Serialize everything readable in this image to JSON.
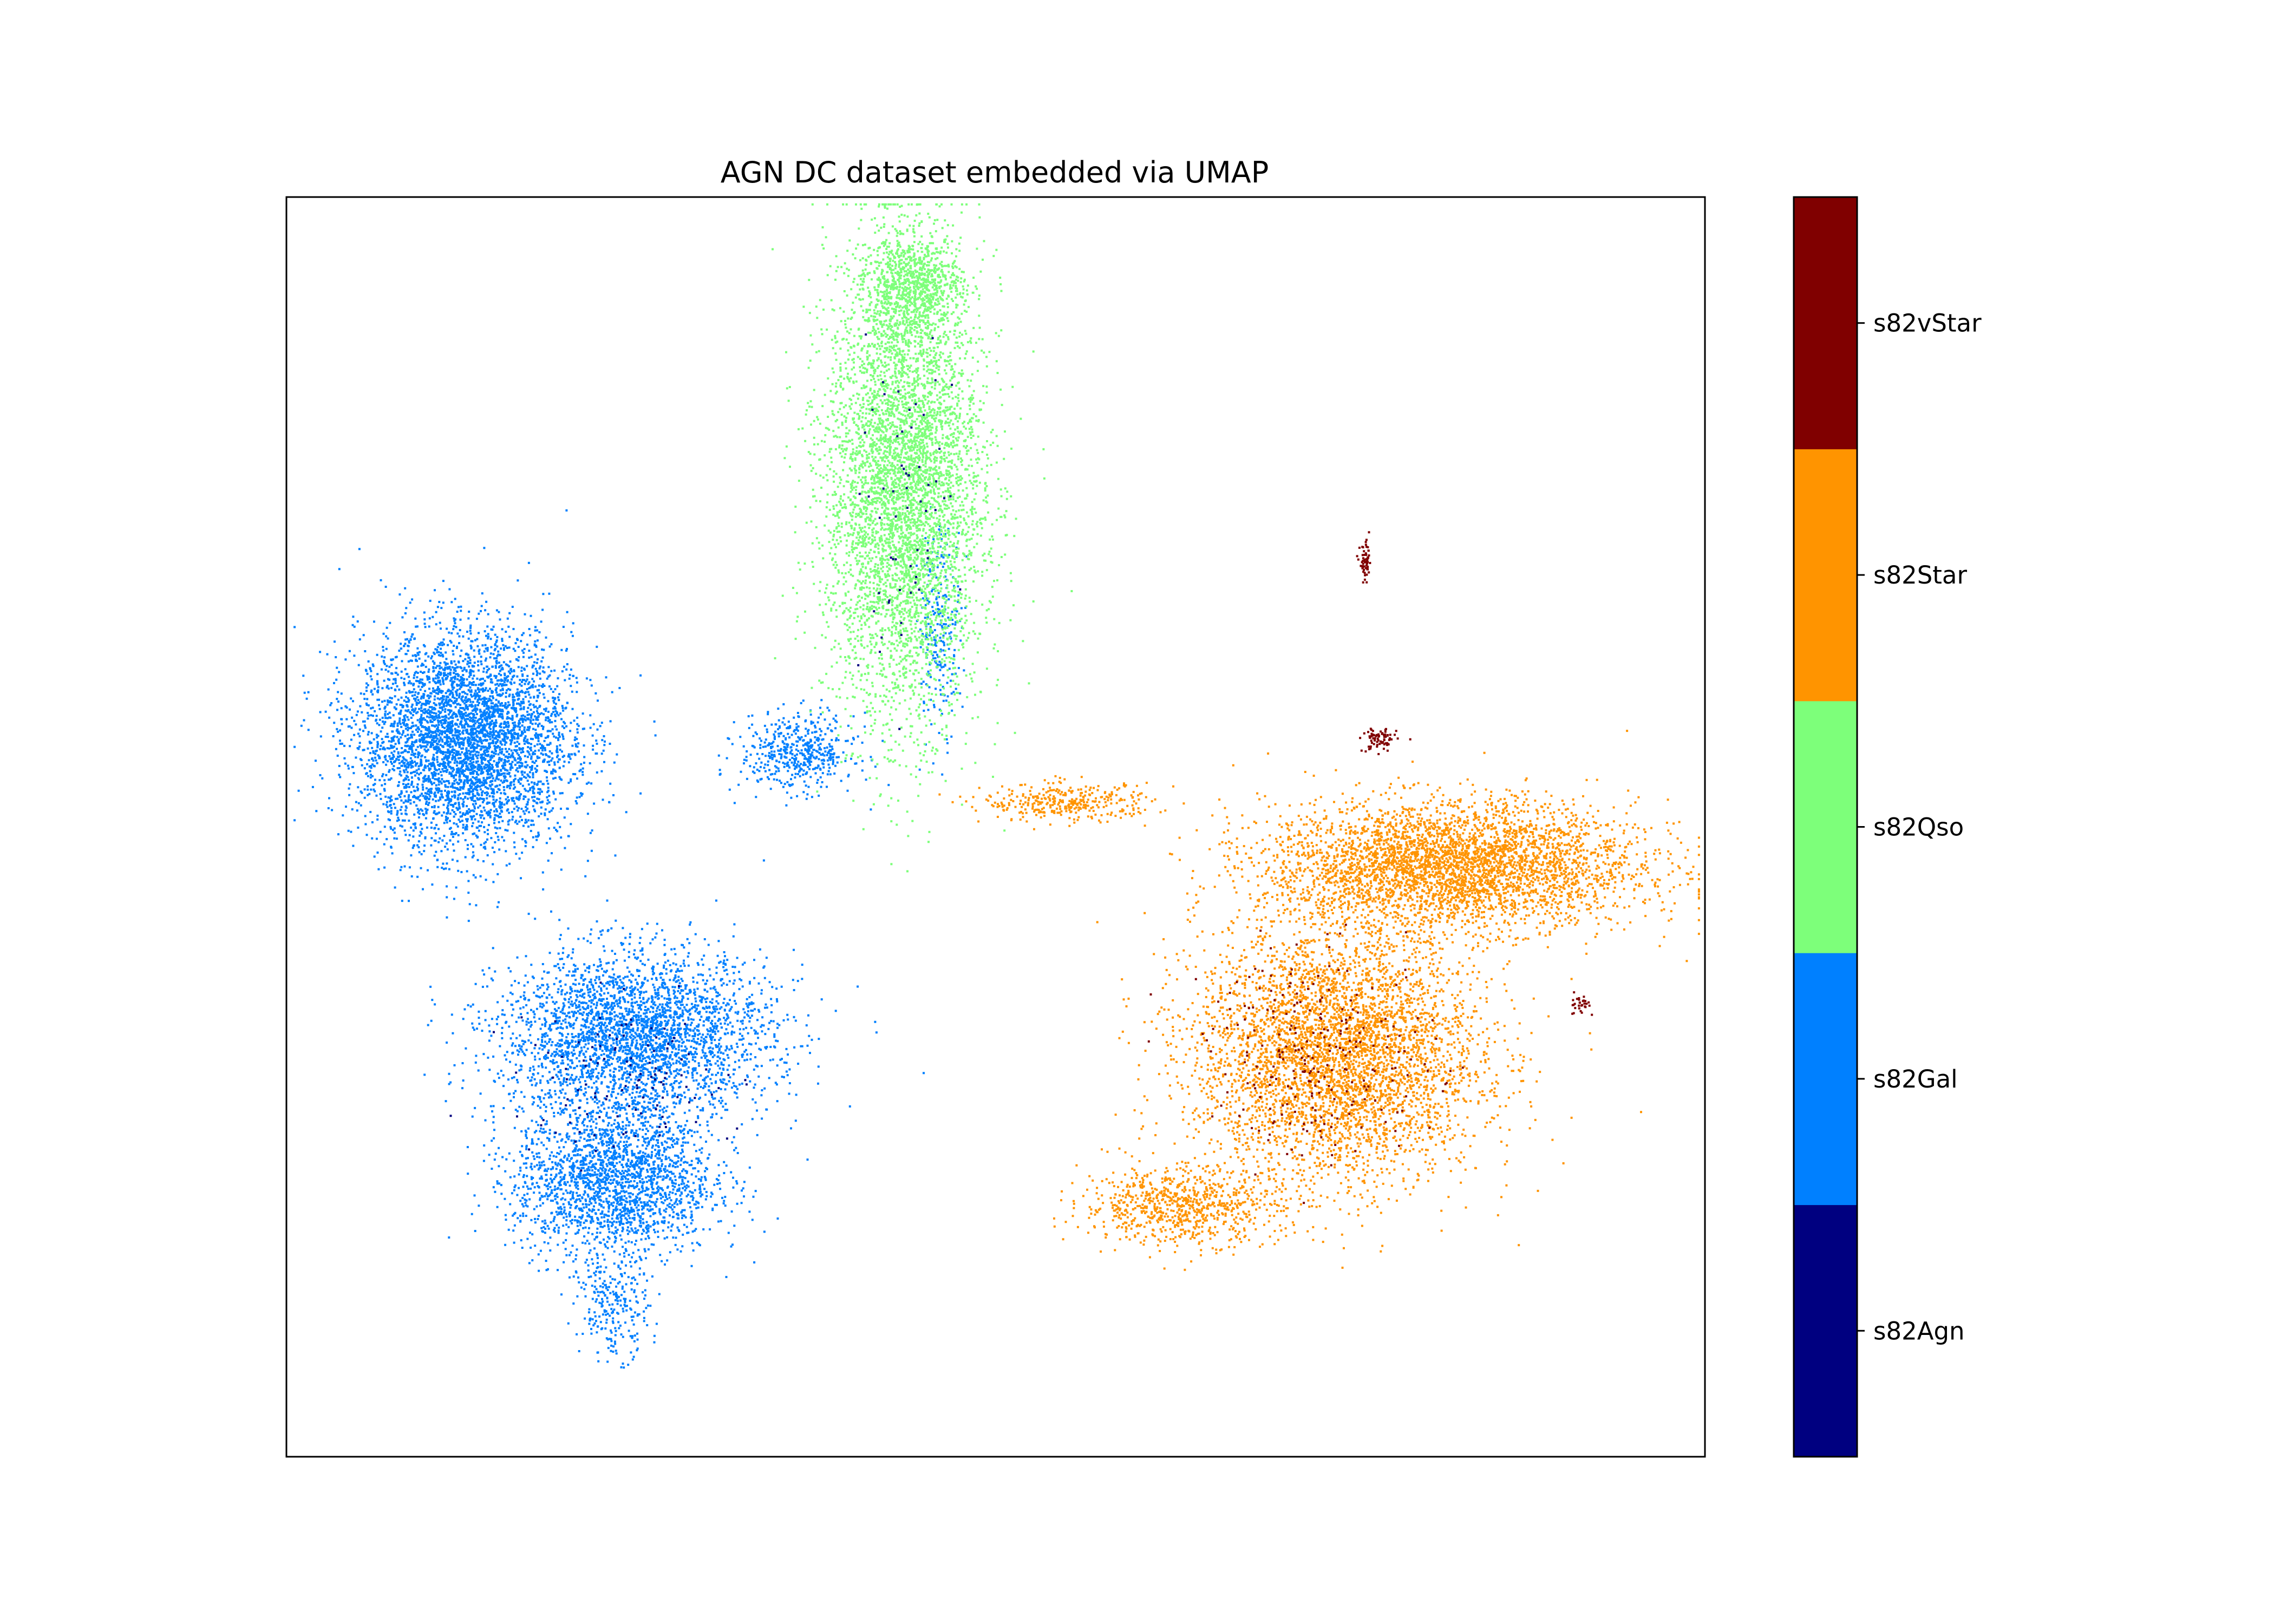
{
  "chart_data": {
    "type": "scatter",
    "title": "AGN DC dataset embedded via UMAP",
    "xlabel": "",
    "ylabel": "",
    "axis_ticks": "none",
    "grid": false,
    "legend": "colorbar-right",
    "colorbar": {
      "categories": [
        "s82Agn",
        "s82Gal",
        "s82Qso",
        "s82Star",
        "s82vStar"
      ],
      "colors": [
        "#000080",
        "#0080ff",
        "#7dff7a",
        "#ff9400",
        "#800000"
      ]
    },
    "series": [
      {
        "name": "s82Gal",
        "color": "#0080ff",
        "clusters": [
          {
            "cx": 0.125,
            "cy": 0.57,
            "rx": 0.075,
            "ry": 0.085,
            "n": 4500
          },
          {
            "cx": 0.245,
            "cy": 0.335,
            "rx": 0.095,
            "ry": 0.065,
            "n": 3200
          },
          {
            "cx": 0.23,
            "cy": 0.22,
            "rx": 0.07,
            "ry": 0.06,
            "n": 2200
          },
          {
            "cx": 0.36,
            "cy": 0.56,
            "rx": 0.04,
            "ry": 0.03,
            "n": 500
          },
          {
            "cx": 0.23,
            "cy": 0.12,
            "rx": 0.025,
            "ry": 0.04,
            "n": 250
          },
          {
            "cx": 0.46,
            "cy": 0.66,
            "rx": 0.015,
            "ry": 0.08,
            "n": 250
          }
        ]
      },
      {
        "name": "s82Qso",
        "color": "#7dff7a",
        "clusters": [
          {
            "cx": 0.435,
            "cy": 0.77,
            "rx": 0.055,
            "ry": 0.18,
            "n": 6000
          },
          {
            "cx": 0.44,
            "cy": 0.93,
            "rx": 0.035,
            "ry": 0.04,
            "n": 900
          }
        ]
      },
      {
        "name": "s82Star",
        "color": "#ff9400",
        "clusters": [
          {
            "cx": 0.82,
            "cy": 0.47,
            "rx": 0.13,
            "ry": 0.05,
            "n": 4000
          },
          {
            "cx": 0.74,
            "cy": 0.32,
            "rx": 0.1,
            "ry": 0.1,
            "n": 4500
          },
          {
            "cx": 0.63,
            "cy": 0.2,
            "rx": 0.07,
            "ry": 0.03,
            "n": 800
          },
          {
            "cx": 0.55,
            "cy": 0.52,
            "rx": 0.06,
            "ry": 0.015,
            "n": 350
          }
        ]
      },
      {
        "name": "s82vStar",
        "color": "#800000",
        "clusters": [
          {
            "cx": 0.76,
            "cy": 0.71,
            "rx": 0.004,
            "ry": 0.015,
            "n": 60
          },
          {
            "cx": 0.77,
            "cy": 0.57,
            "rx": 0.012,
            "ry": 0.01,
            "n": 80
          },
          {
            "cx": 0.91,
            "cy": 0.36,
            "rx": 0.008,
            "ry": 0.008,
            "n": 30
          },
          {
            "cx": 0.73,
            "cy": 0.32,
            "rx": 0.08,
            "ry": 0.08,
            "n": 250
          }
        ]
      },
      {
        "name": "s82Agn",
        "color": "#000080",
        "clusters": [
          {
            "cx": 0.24,
            "cy": 0.3,
            "rx": 0.08,
            "ry": 0.06,
            "n": 120
          },
          {
            "cx": 0.43,
            "cy": 0.75,
            "rx": 0.04,
            "ry": 0.12,
            "n": 60
          }
        ]
      }
    ]
  }
}
